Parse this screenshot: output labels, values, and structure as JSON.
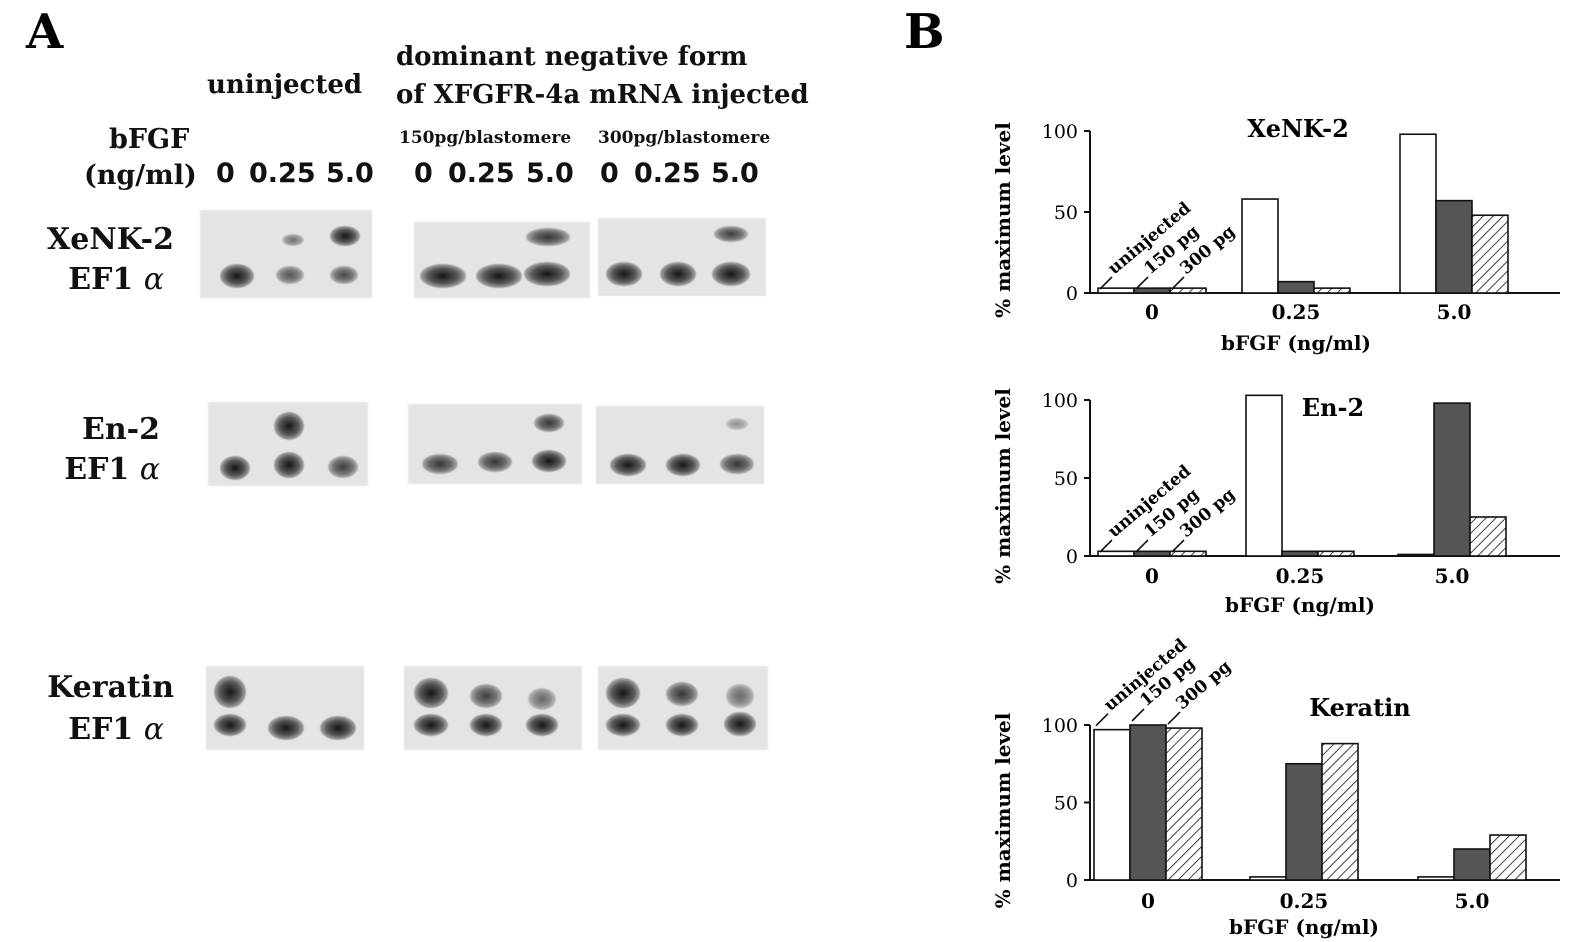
{
  "panel_a": {
    "letter": "A",
    "uninjected_label": "uninjected",
    "dn_label_line1": "dominant negative form",
    "dn_label_line2": "of XFGFR-4a mRNA injected",
    "dose_150": "150pg/blastomere",
    "dose_300": "300pg/blastomere",
    "bfgf_label": "bFGF",
    "bfgf_unit": "(ng/ml)",
    "concentrations": [
      "0",
      "0.25",
      "5.0"
    ],
    "genes": [
      {
        "name": "XeNK-2",
        "control": "EF1",
        "alpha": "α"
      },
      {
        "name": "En-2",
        "control": "EF1",
        "alpha": "α"
      },
      {
        "name": "Keratin",
        "control": "EF1",
        "alpha": "α"
      }
    ]
  },
  "panel_b": {
    "letter": "B"
  },
  "colors": {
    "uninjected_fill": "#ffffff",
    "pg150_fill": "#555555",
    "pg300_fill": "hatched",
    "ink": "#111111"
  },
  "chart_data": [
    {
      "type": "bar",
      "title": "XeNK-2",
      "xlabel": "bFGF (ng/ml)",
      "ylabel": "% maximum level",
      "categories": [
        "0",
        "0.25",
        "5.0"
      ],
      "ylim": [
        0,
        100
      ],
      "yticks": [
        "0",
        "50",
        "100"
      ],
      "series": [
        {
          "name": "uninjected",
          "values": [
            3,
            58,
            98
          ]
        },
        {
          "name": "150 pg",
          "values": [
            3,
            7,
            57
          ]
        },
        {
          "name": "300 pg",
          "values": [
            3,
            3,
            48
          ]
        }
      ]
    },
    {
      "type": "bar",
      "title": "En-2",
      "xlabel": "bFGF (ng/ml)",
      "ylabel": "% maximum level",
      "categories": [
        "0",
        "0.25",
        "5.0"
      ],
      "ylim": [
        0,
        100
      ],
      "yticks": [
        "0",
        "50",
        "100"
      ],
      "series": [
        {
          "name": "uninjected",
          "values": [
            3,
            103,
            1
          ]
        },
        {
          "name": "150 pg",
          "values": [
            3,
            3,
            98
          ]
        },
        {
          "name": "300 pg",
          "values": [
            3,
            3,
            25
          ]
        }
      ]
    },
    {
      "type": "bar",
      "title": "Keratin",
      "xlabel": "bFGF (ng/ml)",
      "ylabel": "% maximum level",
      "categories": [
        "0",
        "0.25",
        "5.0"
      ],
      "ylim": [
        0,
        100
      ],
      "yticks": [
        "0",
        "50",
        "100"
      ],
      "series": [
        {
          "name": "uninjected",
          "values": [
            97,
            2,
            2
          ]
        },
        {
          "name": "150 pg",
          "values": [
            100,
            75,
            20
          ]
        },
        {
          "name": "300 pg",
          "values": [
            98,
            88,
            29
          ]
        }
      ]
    }
  ]
}
